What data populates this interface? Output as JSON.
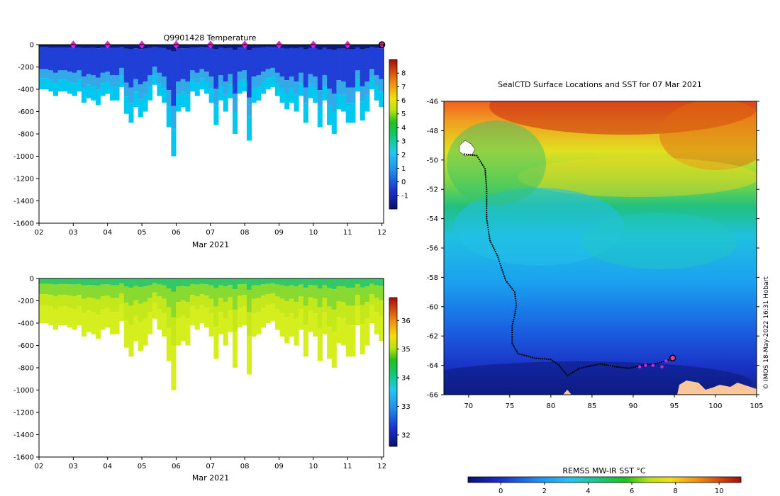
{
  "chart_data": [
    {
      "type": "heatmap",
      "title": "Q9901428  Temperature",
      "xlabel": "Mar 2021",
      "x_tick_labels": [
        "02",
        "03",
        "04",
        "05",
        "06",
        "07",
        "08",
        "09",
        "10",
        "11",
        "12"
      ],
      "xlim": [
        2,
        12.05
      ],
      "ylim": [
        -1600,
        0
      ],
      "y_ticks": [
        0,
        -200,
        -400,
        -600,
        -800,
        -1000,
        -1200,
        -1400,
        -1600
      ],
      "profile_markers_x": [
        3,
        4,
        5,
        6,
        7,
        8,
        9,
        10,
        11
      ],
      "current_profile_x": 12,
      "profile_max_depth": [
        400,
        400,
        420,
        460,
        420,
        420,
        440,
        460,
        420,
        520,
        480,
        500,
        540,
        460,
        440,
        500,
        500,
        380,
        620,
        700,
        560,
        650,
        600,
        500,
        360,
        460,
        520,
        740,
        1000,
        600,
        560,
        600,
        420,
        460,
        400,
        440,
        520,
        720,
        500,
        600,
        480,
        800,
        440,
        420,
        860,
        520,
        500,
        440,
        400,
        380,
        460,
        520,
        580,
        520,
        600,
        460,
        700,
        480,
        520,
        740,
        500,
        720,
        800,
        580,
        600,
        700,
        700,
        420,
        680,
        600,
        400,
        500,
        560
      ],
      "colorbar": {
        "min": -2,
        "max": 9,
        "ticks": [
          "8",
          "7",
          "6",
          "5",
          "4",
          "3",
          "2",
          "1",
          "0",
          "-1"
        ]
      },
      "colors": [
        "#0b1a7a",
        "#1f3fd6",
        "#34a9e8",
        "#00c8f0"
      ]
    },
    {
      "type": "heatmap",
      "title": "",
      "xlabel": "Mar 2021",
      "x_tick_labels": [
        "02",
        "03",
        "04",
        "05",
        "06",
        "07",
        "08",
        "09",
        "10",
        "11",
        "12"
      ],
      "xlim": [
        2,
        12.05
      ],
      "ylim": [
        -1600,
        0
      ],
      "y_ticks": [
        0,
        -200,
        -400,
        -600,
        -800,
        -1000,
        -1200,
        -1400,
        -1600
      ],
      "colorbar": {
        "min": 31.6,
        "max": 36.8,
        "ticks": [
          "36",
          "35",
          "34",
          "33",
          "32"
        ]
      },
      "colors": [
        "#33c866",
        "#88d930",
        "#c4e81a",
        "#d4ee1e"
      ]
    },
    {
      "type": "map",
      "title": "SealCTD Surface Locations and SST for 07 Mar 2021",
      "xlim": [
        67,
        105
      ],
      "ylim": [
        -66,
        -46
      ],
      "x_ticks": [
        "70",
        "75",
        "80",
        "85",
        "90",
        "95",
        "100",
        "105"
      ],
      "y_ticks": [
        "-46",
        "-48",
        "-50",
        "-52",
        "-54",
        "-56",
        "-58",
        "-60",
        "-62",
        "-64",
        "-66"
      ],
      "track_lonlat": [
        [
          69.5,
          -49.6
        ],
        [
          71,
          -49.7
        ],
        [
          72,
          -50.6
        ],
        [
          72.2,
          -52
        ],
        [
          72.2,
          -54
        ],
        [
          72.6,
          -55.5
        ],
        [
          73.5,
          -56.5
        ],
        [
          74.5,
          -58.2
        ],
        [
          75.6,
          -59
        ],
        [
          75.8,
          -59.9
        ],
        [
          75.6,
          -60.6
        ],
        [
          75.3,
          -61.3
        ],
        [
          75.3,
          -62.5
        ],
        [
          76,
          -63.2
        ],
        [
          78,
          -63.5
        ],
        [
          80,
          -63.6
        ],
        [
          81,
          -64
        ],
        [
          82,
          -64.7
        ],
        [
          83.5,
          -64.2
        ],
        [
          86,
          -63.9
        ],
        [
          88,
          -64.1
        ],
        [
          89.5,
          -64.2
        ],
        [
          91,
          -64
        ],
        [
          92.7,
          -63.9
        ],
        [
          94,
          -63.7
        ],
        [
          94.8,
          -63.5
        ]
      ],
      "profile_points_lonlat": [
        [
          90.8,
          -64.1
        ],
        [
          91.5,
          -64
        ],
        [
          92.4,
          -64
        ],
        [
          93.5,
          -64.1
        ],
        [
          94,
          -63.7
        ]
      ],
      "current_point_lonlat": [
        94.8,
        -63.5
      ],
      "colorbar": {
        "label": "REMSS MW-IR SST °C",
        "min": -1.5,
        "max": 11,
        "ticks": [
          "0",
          "2",
          "4",
          "6",
          "8",
          "10"
        ]
      },
      "watermark": "© IMOS 18-May-2022 16:31 Hobart",
      "colors": {
        "land": "#f9c79a",
        "track": "#000000",
        "profile": "#e020d0",
        "current": "#e040a0"
      }
    }
  ]
}
